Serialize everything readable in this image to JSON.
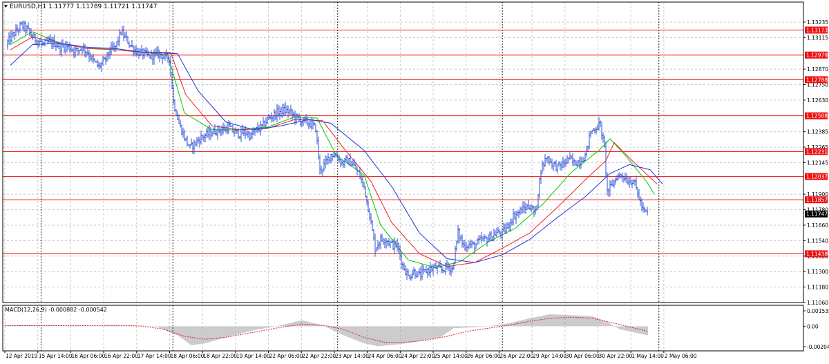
{
  "chart_data": {
    "type": "candlestick",
    "symbol_header": "EURUSD,H1  1.11777 1.11789 1.11721 1.11747",
    "last_price": 1.11747,
    "price_axis": {
      "min": 1.1106,
      "max": 1.1339,
      "ticks": [
        "1.13235",
        "1.13115",
        "1.12870",
        "1.12750",
        "1.12630",
        "1.12385",
        "1.12265",
        "1.12145",
        "1.11900",
        "1.11780",
        "1.11660",
        "1.11540",
        "1.11420",
        "1.11300",
        "1.11180",
        "1.11060"
      ]
    },
    "horizontal_levels": [
      "1.13173",
      "1.12979",
      "1.12788",
      "1.12508",
      "1.12231",
      "1.12037",
      "1.11857",
      "1.11438"
    ],
    "time_axis": {
      "labels": [
        "12 Apr 2019",
        "15 Apr 14:00",
        "16 Apr 06:00",
        "16 Apr 22:00",
        "17 Apr 14:00",
        "18 Apr 06:00",
        "18 Apr 22:00",
        "19 Apr 14:00",
        "22 Apr 06:00",
        "22 Apr 22:00",
        "23 Apr 14:00",
        "24 Apr 06:00",
        "24 Apr 22:00",
        "25 Apr 14:00",
        "26 Apr 06:00",
        "26 Apr 22:00",
        "29 Apr 14:00",
        "30 Apr 06:00",
        "30 Apr 22:00",
        "1 May 14:00",
        "2 May 06:00"
      ],
      "weekly_separators": [
        "15 Apr 2019",
        "22 Apr 2019",
        "29 Apr 2019"
      ]
    },
    "price_path": [
      [
        0,
        1.1305
      ],
      [
        8,
        1.1311
      ],
      [
        16,
        1.1316
      ],
      [
        24,
        1.1321
      ],
      [
        32,
        1.1318
      ],
      [
        40,
        1.1312
      ],
      [
        48,
        1.1309
      ],
      [
        56,
        1.1306
      ],
      [
        64,
        1.1308
      ],
      [
        72,
        1.1307
      ],
      [
        80,
        1.1304
      ],
      [
        88,
        1.1305
      ],
      [
        96,
        1.1303
      ],
      [
        104,
        1.1301
      ],
      [
        112,
        1.1304
      ],
      [
        120,
        1.13
      ],
      [
        128,
        1.1293
      ],
      [
        136,
        1.1289
      ],
      [
        144,
        1.1293
      ],
      [
        152,
        1.1301
      ],
      [
        160,
        1.1304
      ],
      [
        168,
        1.1316
      ],
      [
        176,
        1.131
      ],
      [
        184,
        1.1304
      ],
      [
        192,
        1.13
      ],
      [
        200,
        1.1299
      ],
      [
        208,
        1.1297
      ],
      [
        216,
        1.1298
      ],
      [
        224,
        1.1299
      ],
      [
        232,
        1.1296
      ],
      [
        238,
        1.1296
      ],
      [
        244,
        1.1262
      ],
      [
        252,
        1.1245
      ],
      [
        260,
        1.1234
      ],
      [
        268,
        1.1226
      ],
      [
        276,
        1.123
      ],
      [
        284,
        1.1234
      ],
      [
        292,
        1.1236
      ],
      [
        300,
        1.1238
      ],
      [
        308,
        1.124
      ],
      [
        316,
        1.124
      ],
      [
        324,
        1.1242
      ],
      [
        332,
        1.1238
      ],
      [
        340,
        1.1237
      ],
      [
        348,
        1.1238
      ],
      [
        356,
        1.1235
      ],
      [
        364,
        1.124
      ],
      [
        372,
        1.1242
      ],
      [
        380,
        1.1248
      ],
      [
        388,
        1.1251
      ],
      [
        396,
        1.1254
      ],
      [
        404,
        1.1255
      ],
      [
        412,
        1.1254
      ],
      [
        420,
        1.125
      ],
      [
        428,
        1.1247
      ],
      [
        436,
        1.1246
      ],
      [
        444,
        1.1244
      ],
      [
        450,
        1.1241
      ],
      [
        456,
        1.1208
      ],
      [
        464,
        1.1214
      ],
      [
        472,
        1.1221
      ],
      [
        480,
        1.122
      ],
      [
        488,
        1.1214
      ],
      [
        496,
        1.1216
      ],
      [
        504,
        1.1213
      ],
      [
        512,
        1.1206
      ],
      [
        520,
        1.1196
      ],
      [
        528,
        1.1174
      ],
      [
        536,
        1.1148
      ],
      [
        544,
        1.1155
      ],
      [
        552,
        1.1155
      ],
      [
        560,
        1.1151
      ],
      [
        568,
        1.115
      ],
      [
        576,
        1.1135
      ],
      [
        584,
        1.1126
      ],
      [
        592,
        1.113
      ],
      [
        600,
        1.1127
      ],
      [
        608,
        1.113
      ],
      [
        616,
        1.1132
      ],
      [
        624,
        1.1133
      ],
      [
        632,
        1.1131
      ],
      [
        640,
        1.1134
      ],
      [
        648,
        1.1132
      ],
      [
        656,
        1.116
      ],
      [
        664,
        1.115
      ],
      [
        672,
        1.1151
      ],
      [
        680,
        1.115
      ],
      [
        688,
        1.1154
      ],
      [
        696,
        1.1155
      ],
      [
        704,
        1.1157
      ],
      [
        712,
        1.116
      ],
      [
        720,
        1.116
      ],
      [
        728,
        1.1165
      ],
      [
        736,
        1.1173
      ],
      [
        744,
        1.1176
      ],
      [
        752,
        1.1179
      ],
      [
        760,
        1.1181
      ],
      [
        768,
        1.1175
      ],
      [
        776,
        1.1209
      ],
      [
        784,
        1.1219
      ],
      [
        792,
        1.1214
      ],
      [
        800,
        1.1211
      ],
      [
        808,
        1.1213
      ],
      [
        816,
        1.1218
      ],
      [
        824,
        1.1214
      ],
      [
        832,
        1.1216
      ],
      [
        840,
        1.122
      ],
      [
        848,
        1.1238
      ],
      [
        856,
        1.1242
      ],
      [
        862,
        1.1244
      ],
      [
        868,
        1.1225
      ],
      [
        872,
        1.1192
      ],
      [
        878,
        1.1196
      ],
      [
        886,
        1.1204
      ],
      [
        894,
        1.1205
      ],
      [
        902,
        1.12
      ],
      [
        910,
        1.1201
      ],
      [
        918,
        1.1187
      ],
      [
        924,
        1.1177
      ],
      [
        930,
        1.1175
      ]
    ],
    "moving_averages": [
      {
        "color": "#00cc00",
        "points": [
          [
            8,
            1.1306
          ],
          [
            40,
            1.1316
          ],
          [
            80,
            1.1307
          ],
          [
            120,
            1.1303
          ],
          [
            160,
            1.1303
          ],
          [
            200,
            1.13
          ],
          [
            236,
            1.1298
          ],
          [
            260,
            1.1253
          ],
          [
            300,
            1.124
          ],
          [
            340,
            1.124
          ],
          [
            380,
            1.1242
          ],
          [
            420,
            1.125
          ],
          [
            452,
            1.1249
          ],
          [
            480,
            1.122
          ],
          [
            520,
            1.1205
          ],
          [
            544,
            1.1166
          ],
          [
            584,
            1.1139
          ],
          [
            624,
            1.1133
          ],
          [
            660,
            1.1138
          ],
          [
            700,
            1.1153
          ],
          [
            740,
            1.1164
          ],
          [
            780,
            1.1183
          ],
          [
            820,
            1.1207
          ],
          [
            860,
            1.1224
          ],
          [
            876,
            1.1233
          ],
          [
            900,
            1.1219
          ],
          [
            930,
            1.1199
          ],
          [
            940,
            1.119
          ]
        ]
      },
      {
        "color": "#ee2222",
        "points": [
          [
            8,
            1.1302
          ],
          [
            40,
            1.1312
          ],
          [
            80,
            1.1307
          ],
          [
            120,
            1.1303
          ],
          [
            160,
            1.1302
          ],
          [
            200,
            1.13
          ],
          [
            240,
            1.13
          ],
          [
            262,
            1.1267
          ],
          [
            300,
            1.1243
          ],
          [
            340,
            1.124
          ],
          [
            380,
            1.1241
          ],
          [
            420,
            1.1248
          ],
          [
            460,
            1.1247
          ],
          [
            490,
            1.1226
          ],
          [
            530,
            1.12
          ],
          [
            560,
            1.1168
          ],
          [
            600,
            1.1144
          ],
          [
            640,
            1.1134
          ],
          [
            680,
            1.1137
          ],
          [
            720,
            1.1148
          ],
          [
            760,
            1.116
          ],
          [
            800,
            1.118
          ],
          [
            840,
            1.1201
          ],
          [
            870,
            1.1216
          ],
          [
            882,
            1.123
          ],
          [
            910,
            1.1215
          ],
          [
            944,
            1.1198
          ]
        ]
      },
      {
        "color": "#2233dd",
        "points": [
          [
            8,
            1.129
          ],
          [
            40,
            1.1306
          ],
          [
            80,
            1.1307
          ],
          [
            120,
            1.1304
          ],
          [
            160,
            1.1303
          ],
          [
            200,
            1.13
          ],
          [
            250,
            1.1299
          ],
          [
            280,
            1.127
          ],
          [
            320,
            1.1246
          ],
          [
            360,
            1.124
          ],
          [
            400,
            1.1243
          ],
          [
            440,
            1.1248
          ],
          [
            472,
            1.1245
          ],
          [
            520,
            1.1224
          ],
          [
            560,
            1.1196
          ],
          [
            600,
            1.116
          ],
          [
            640,
            1.114
          ],
          [
            680,
            1.1137
          ],
          [
            720,
            1.1143
          ],
          [
            760,
            1.1155
          ],
          [
            800,
            1.1172
          ],
          [
            840,
            1.1188
          ],
          [
            876,
            1.1206
          ],
          [
            904,
            1.1213
          ],
          [
            934,
            1.1209
          ],
          [
            952,
            1.1198
          ]
        ]
      }
    ],
    "macd": {
      "label": "MACD(12,26,9) -0.000882 -0.000542",
      "axis_ticks": [
        "0.001535",
        "0.00",
        "-0.002041"
      ],
      "hist_color": "#999999",
      "signal_color": "#dd2222",
      "histogram": [
        [
          0,
          0.00012
        ],
        [
          60,
          8e-05
        ],
        [
          120,
          4e-05
        ],
        [
          160,
          0.0001
        ],
        [
          190,
          2e-05
        ],
        [
          220,
          -5e-05
        ],
        [
          250,
          -0.0009
        ],
        [
          270,
          -0.0019
        ],
        [
          290,
          -0.0017
        ],
        [
          320,
          -0.0011
        ],
        [
          360,
          -0.0004
        ],
        [
          400,
          0.0001
        ],
        [
          430,
          0.0006
        ],
        [
          460,
          0.0001
        ],
        [
          490,
          -0.0009
        ],
        [
          520,
          -0.0017
        ],
        [
          540,
          -0.002
        ],
        [
          570,
          -0.0018
        ],
        [
          600,
          -0.0015
        ],
        [
          630,
          -0.0011
        ],
        [
          650,
          -0.0002
        ],
        [
          680,
          -0.0001
        ],
        [
          700,
          0.0
        ],
        [
          730,
          0.0003
        ],
        [
          760,
          0.0008
        ],
        [
          790,
          0.0012
        ],
        [
          820,
          0.0011
        ],
        [
          850,
          0.001
        ],
        [
          870,
          0.0005
        ],
        [
          890,
          -0.0003
        ],
        [
          910,
          -0.0006
        ],
        [
          930,
          -0.0009
        ]
      ],
      "signal": [
        [
          0,
          5e-05
        ],
        [
          60,
          6e-05
        ],
        [
          120,
          6e-05
        ],
        [
          170,
          8e-05
        ],
        [
          200,
          1e-05
        ],
        [
          230,
          -0.0003
        ],
        [
          260,
          -0.001
        ],
        [
          290,
          -0.0013
        ],
        [
          320,
          -0.0011
        ],
        [
          360,
          -0.0006
        ],
        [
          400,
          -0.0001
        ],
        [
          430,
          0.0002
        ],
        [
          460,
          0.0001
        ],
        [
          490,
          -0.0003
        ],
        [
          520,
          -0.0011
        ],
        [
          550,
          -0.0016
        ],
        [
          580,
          -0.0016
        ],
        [
          610,
          -0.0014
        ],
        [
          640,
          -0.001
        ],
        [
          670,
          -0.0005
        ],
        [
          700,
          -0.0002
        ],
        [
          730,
          0.0001
        ],
        [
          760,
          0.0005
        ],
        [
          790,
          0.0008
        ],
        [
          820,
          0.0009
        ],
        [
          850,
          0.0008
        ],
        [
          870,
          0.0005
        ],
        [
          900,
          0.0
        ],
        [
          930,
          -0.0005
        ]
      ]
    }
  }
}
